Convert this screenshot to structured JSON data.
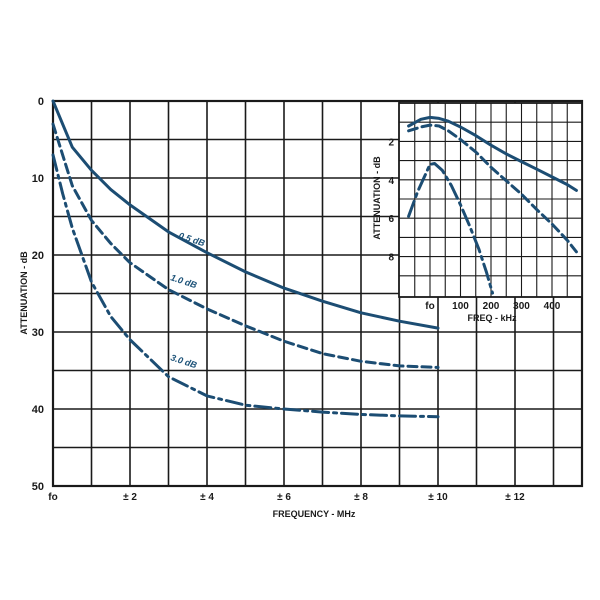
{
  "chart_data": [
    {
      "type": "line",
      "xlabel": "FREQUENCY - MHz",
      "ylabel": "ATTENUATION - dB",
      "x_ticks": [
        "fo",
        "± 2",
        "± 4",
        "± 6",
        "± 8",
        "± 10",
        "± 12"
      ],
      "y_ticks": [
        "0",
        "10",
        "20",
        "30",
        "40",
        "50"
      ],
      "xlim": [
        0,
        14
      ],
      "ylim": [
        0,
        50
      ],
      "y_reversed": true,
      "grid": true,
      "series": [
        {
          "name": "0.5 dB",
          "style": "solid",
          "x": [
            0,
            0.5,
            1,
            1.5,
            2,
            3,
            4,
            5,
            6,
            7,
            8,
            9,
            10
          ],
          "y": [
            0,
            6,
            9,
            11.5,
            13.5,
            17,
            19.7,
            22.2,
            24.3,
            26,
            27.5,
            28.6,
            29.5
          ]
        },
        {
          "name": "1.0 dB",
          "style": "dash",
          "x": [
            0,
            0.5,
            1,
            1.5,
            2,
            3,
            4,
            5,
            6,
            7,
            8,
            9,
            10
          ],
          "y": [
            3,
            11,
            15.5,
            18.5,
            21,
            24.5,
            27,
            29.2,
            31.2,
            32.8,
            33.8,
            34.4,
            34.6
          ]
        },
        {
          "name": "3.0 dB",
          "style": "dashdot",
          "x": [
            0,
            0.25,
            0.5,
            1,
            1.5,
            2,
            3,
            4,
            5,
            6,
            7,
            8,
            9,
            10
          ],
          "y": [
            7,
            12,
            16.5,
            23.5,
            28,
            31,
            35.8,
            38.3,
            39.5,
            40,
            40.4,
            40.7,
            40.9,
            41
          ]
        }
      ]
    },
    {
      "type": "line",
      "xlabel": "FREQ - kHz",
      "ylabel": "ATTENUATION - dB",
      "x_ticks": [
        "fo",
        "100",
        "200",
        "300",
        "400"
      ],
      "y_ticks": [
        "2",
        "4",
        "6",
        "8"
      ],
      "xlim": [
        -70,
        480
      ],
      "ylim": [
        0,
        10
      ],
      "y_reversed": true,
      "grid": true,
      "series": [
        {
          "name": "0.5 dB",
          "style": "solid",
          "x": [
            -70,
            -30,
            0,
            30,
            60,
            100,
            150,
            200,
            250,
            300,
            350,
            400,
            450,
            480
          ],
          "y": [
            1.2,
            0.85,
            0.75,
            0.8,
            0.95,
            1.25,
            1.7,
            2.2,
            2.65,
            3.05,
            3.45,
            3.85,
            4.25,
            4.55
          ]
        },
        {
          "name": "1.0 dB",
          "style": "dash",
          "x": [
            -70,
            -30,
            0,
            30,
            60,
            100,
            150,
            200,
            250,
            300,
            350,
            400,
            450,
            480
          ],
          "y": [
            1.45,
            1.25,
            1.15,
            1.2,
            1.45,
            1.9,
            2.55,
            3.35,
            4.05,
            4.75,
            5.55,
            6.3,
            7.15,
            7.75
          ]
        },
        {
          "name": "3.0 dB",
          "style": "dashdot",
          "x": [
            -70,
            -40,
            -20,
            0,
            15,
            40,
            70,
            100,
            130,
            160,
            185,
            205
          ],
          "y": [
            5.9,
            4.6,
            3.9,
            3.2,
            3.15,
            3.5,
            4.3,
            5.3,
            6.4,
            7.6,
            8.8,
            9.9
          ]
        }
      ]
    }
  ]
}
